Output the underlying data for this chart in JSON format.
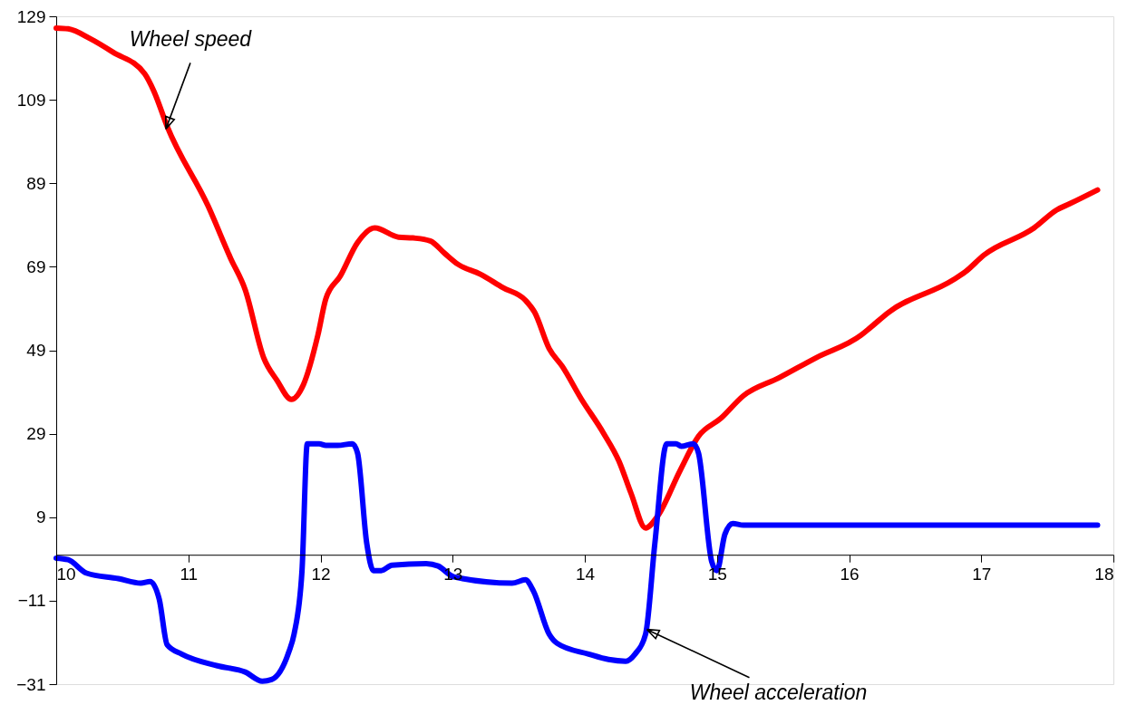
{
  "chart_data": {
    "type": "line",
    "xlim": [
      10,
      18
    ],
    "xticks": [
      10,
      11,
      12,
      13,
      14,
      15,
      16,
      17,
      18
    ],
    "ylim": [
      -31,
      129
    ],
    "yticks": [
      -31,
      -11,
      9,
      29,
      49,
      69,
      89,
      109,
      129
    ],
    "grid": false,
    "marker": "none",
    "line_style": "solid",
    "series": [
      {
        "color": "#ff0000",
        "x": [
          10,
          10.09,
          10.26,
          10.43,
          10.67,
          10.74,
          10.84,
          11.15,
          11.32,
          11.43,
          11.57,
          11.67,
          11.78,
          11.87,
          11.98,
          12.04,
          12.15,
          12.28,
          12.41,
          12.59,
          12.7,
          12.83,
          12.94,
          13.04,
          13.21,
          13.38,
          13.55,
          13.62,
          13.73,
          13.83,
          13.97,
          14.14,
          14.26,
          14.35,
          14.46,
          14.55,
          14.72,
          14.86,
          15.03,
          15.2,
          15.47,
          15.75,
          16.09,
          16.16,
          16.3,
          16.78,
          16.88,
          17.02,
          17.4,
          17.57,
          17.67,
          17.88
        ],
        "values": [
          126.2,
          126,
          123.6,
          120.4,
          115.2,
          111,
          102.6,
          83.5,
          71,
          63.5,
          47.2,
          41.8,
          37.2,
          40.7,
          52.6,
          61.3,
          66.8,
          74.8,
          78.3,
          76.1,
          75.9,
          75.2,
          72.2,
          69.6,
          67.2,
          64,
          61,
          58.1,
          49.4,
          45.1,
          37.5,
          29.2,
          22.3,
          14.7,
          6.4,
          9.2,
          20.1,
          28.4,
          32.7,
          38.1,
          42.4,
          47.2,
          52.6,
          54.4,
          58.1,
          65.7,
          67.8,
          71.8,
          78.3,
          82.6,
          84.1,
          87.4
        ]
      },
      {
        "color": "#0000ff",
        "x": [
          10,
          10.09,
          10.23,
          10.47,
          10.64,
          10.71,
          10.78,
          10.84,
          10.95,
          11.22,
          11.43,
          11.56,
          11.63,
          11.76,
          11.8,
          11.86,
          11.9,
          11.99,
          12.04,
          12.13,
          12.24,
          12.28,
          12.35,
          12.4,
          12.46,
          12.54,
          12.8,
          12.89,
          13.01,
          13.45,
          13.55,
          13.61,
          13.73,
          13.79,
          14.03,
          14.18,
          14.31,
          14.38,
          14.46,
          14.53,
          14.62,
          14.69,
          14.73,
          14.82,
          14.86,
          14.96,
          15.0,
          15.06,
          15.12,
          15.2,
          17.88
        ],
        "values": [
          -0.8,
          -1.2,
          -4.4,
          -5.7,
          -6.8,
          -6.4,
          -10.7,
          -21.6,
          -23.8,
          -26.6,
          -28.1,
          -30.3,
          -29.9,
          -23.3,
          -19,
          -3.8,
          26.6,
          26.6,
          26.2,
          26.2,
          26.6,
          24.4,
          2.7,
          -3.8,
          -3.8,
          -2.5,
          -2.1,
          -2.7,
          -5.3,
          -6.8,
          -6,
          -8.6,
          -19,
          -21.2,
          -23.8,
          -25.1,
          -25.5,
          -23.8,
          -19,
          2.7,
          26.6,
          26.6,
          26,
          26.6,
          24.4,
          -1.6,
          -3.8,
          4.9,
          7.5,
          7.1,
          7.1
        ]
      }
    ],
    "annotations": [
      {
        "text": "Wheel speed",
        "x": 10.83,
        "y": 102
      },
      {
        "text": "Wheel acceleration",
        "x": 14.47,
        "y": -17.9
      }
    ]
  }
}
